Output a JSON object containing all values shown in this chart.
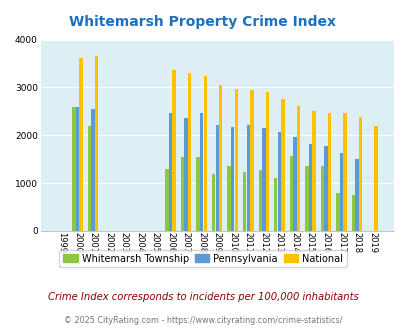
{
  "title": "Whitemarsh Property Crime Index",
  "years": [
    1999,
    2000,
    2001,
    2002,
    2003,
    2004,
    2005,
    2006,
    2007,
    2008,
    2009,
    2010,
    2011,
    2012,
    2013,
    2014,
    2015,
    2016,
    2017,
    2018,
    2019
  ],
  "whitemarsh": [
    0,
    2600,
    2200,
    0,
    0,
    0,
    0,
    1300,
    1550,
    1550,
    1200,
    1360,
    1240,
    1270,
    1100,
    1570,
    1360,
    1360,
    800,
    760,
    0
  ],
  "pennsylvania": [
    0,
    2600,
    2550,
    0,
    0,
    0,
    0,
    2470,
    2370,
    2460,
    2210,
    2170,
    2210,
    2150,
    2060,
    1960,
    1810,
    1770,
    1640,
    1500,
    0
  ],
  "national": [
    0,
    3620,
    3650,
    0,
    0,
    0,
    0,
    3360,
    3300,
    3230,
    3060,
    2970,
    2950,
    2900,
    2750,
    2620,
    2510,
    2460,
    2460,
    2390,
    2190
  ],
  "ylim": [
    0,
    4000
  ],
  "yticks": [
    0,
    1000,
    2000,
    3000,
    4000
  ],
  "bar_color_whitemarsh": "#8dc63f",
  "bar_color_pennsylvania": "#5b9bd5",
  "bar_color_national": "#ffc000",
  "plot_bg_color": "#ddeef5",
  "grid_color": "#c8dde8",
  "legend_labels": [
    "Whitemarsh Township",
    "Pennsylvania",
    "National"
  ],
  "footnote": "Crime Index corresponds to incidents per 100,000 inhabitants",
  "copyright": "© 2025 CityRating.com - https://www.cityrating.com/crime-statistics/",
  "title_color": "#1f6fbf",
  "footnote_color": "#8b0000",
  "copyright_color": "#777777"
}
